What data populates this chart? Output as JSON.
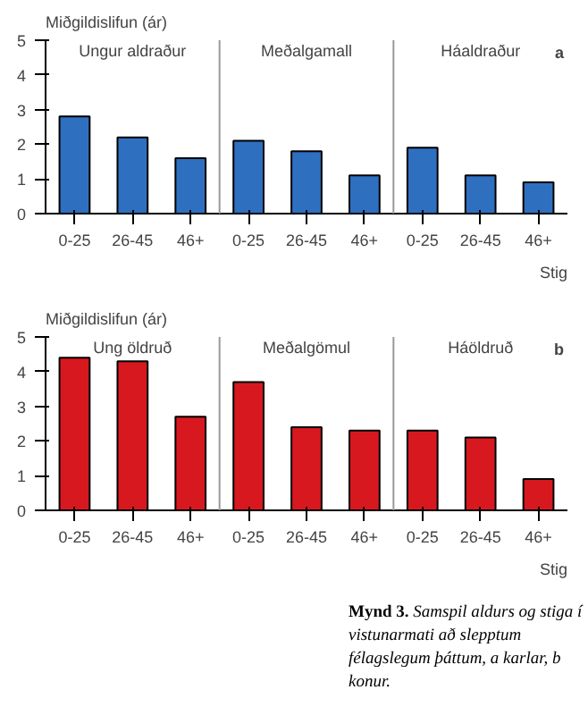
{
  "chart_data": [
    {
      "type": "bar",
      "ylabel": "Miðgildislifun (ár)",
      "xlabel": "Stig",
      "categories": [
        "0-25",
        "26-45",
        "46+",
        "0-25",
        "26-45",
        "46+",
        "0-25",
        "26-45",
        "46+"
      ],
      "series": [
        {
          "color": "#2f6fc0",
          "values": [
            2.8,
            2.2,
            1.6,
            2.1,
            1.8,
            1.1,
            1.9,
            1.1,
            0.9
          ]
        }
      ],
      "ylim": [
        0,
        5
      ],
      "yticks": [
        0,
        1,
        2,
        3,
        4,
        5
      ],
      "grid": false,
      "annotations": [
        "Ungur aldraður",
        "Meðalgamall",
        "Háaldraður",
        "a"
      ]
    },
    {
      "type": "bar",
      "ylabel": "Miðgildislifun (ár)",
      "xlabel": "Stig",
      "categories": [
        "0-25",
        "26-45",
        "46+",
        "0-25",
        "26-45",
        "46+",
        "0-25",
        "26-45",
        "46+"
      ],
      "series": [
        {
          "color": "#d7191f",
          "values": [
            4.4,
            4.3,
            2.7,
            3.7,
            2.4,
            2.3,
            2.3,
            2.1,
            0.9
          ]
        }
      ],
      "ylim": [
        0,
        5
      ],
      "yticks": [
        0,
        1,
        2,
        3,
        4,
        5
      ],
      "grid": false,
      "annotations": [
        "Ung öldruð",
        "Meðalgömul",
        "Háöldruð",
        "b"
      ]
    },
    {
      "type": "other",
      "annotations": [
        "Mynd 3. Samspil aldurs og stiga í vistunarmati að slepptum félagslegum þáttum, a karlar, b konur."
      ]
    }
  ]
}
